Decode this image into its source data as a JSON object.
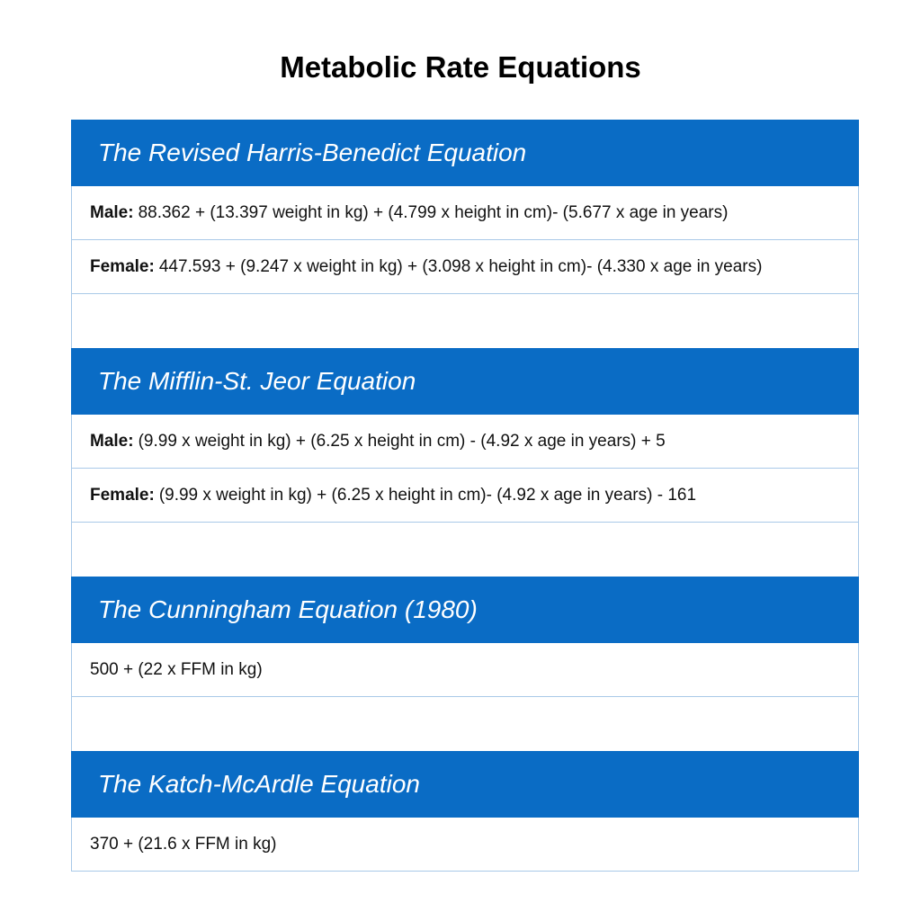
{
  "page": {
    "title": "Metabolic Rate Equations"
  },
  "colors": {
    "header_bg": "#0a6cc5",
    "header_text": "#ffffff",
    "border": "#a9c9e8"
  },
  "sections": [
    {
      "heading": "The Revised Harris-Benedict Equation",
      "rows": [
        {
          "label": "Male:",
          "formula": "88.362 + (13.397 weight in kg) + (4.799 x height in cm)- (5.677 x age in years)"
        },
        {
          "label": "Female:",
          "formula": "447.593 + (9.247 x weight in kg) + (3.098 x height in cm)- (4.330 x age in years)"
        }
      ]
    },
    {
      "heading": "The Mifflin-St. Jeor Equation",
      "rows": [
        {
          "label": "Male:",
          "formula": "(9.99 x weight in kg) + (6.25 x height in cm) - (4.92 x age in years) + 5"
        },
        {
          "label": "Female:",
          "formula": "(9.99 x weight in kg) + (6.25 x height in cm)- (4.92 x age in years) - 161"
        }
      ]
    },
    {
      "heading": "The Cunningham Equation (1980)",
      "rows": [
        {
          "label": "",
          "formula": "500 + (22 x FFM in kg)"
        }
      ]
    },
    {
      "heading": "The Katch-McArdle Equation",
      "rows": [
        {
          "label": "",
          "formula": "370 + (21.6 x FFM in kg)"
        }
      ]
    }
  ]
}
